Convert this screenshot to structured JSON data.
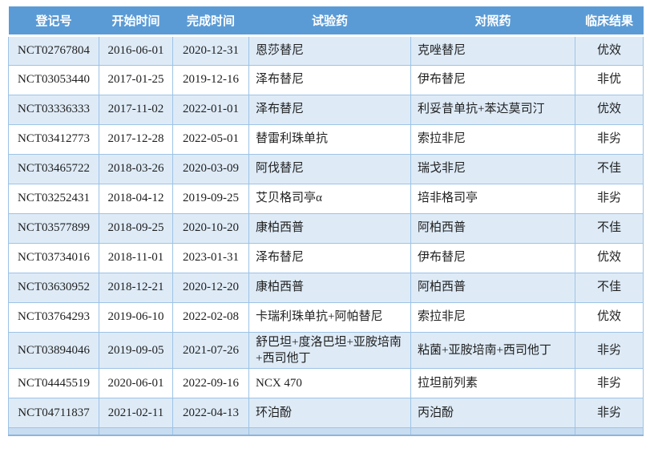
{
  "table": {
    "columns": [
      {
        "key": "registration_id",
        "label": "登记号"
      },
      {
        "key": "start_date",
        "label": "开始时间"
      },
      {
        "key": "end_date",
        "label": "完成时间"
      },
      {
        "key": "test_drug",
        "label": "试验药"
      },
      {
        "key": "control_drug",
        "label": "对照药"
      },
      {
        "key": "clinical_result",
        "label": "临床结果"
      }
    ],
    "rows": [
      {
        "registration_id": "NCT02767804",
        "start_date": "2016-06-01",
        "end_date": "2020-12-31",
        "test_drug": "恩莎替尼",
        "control_drug": "克唑替尼",
        "clinical_result": "优效"
      },
      {
        "registration_id": "NCT03053440",
        "start_date": "2017-01-25",
        "end_date": "2019-12-16",
        "test_drug": "泽布替尼",
        "control_drug": "伊布替尼",
        "clinical_result": "非优"
      },
      {
        "registration_id": "NCT03336333",
        "start_date": "2017-11-02",
        "end_date": "2022-01-01",
        "test_drug": "泽布替尼",
        "control_drug": "利妥昔单抗+苯达莫司汀",
        "clinical_result": "优效"
      },
      {
        "registration_id": "NCT03412773",
        "start_date": "2017-12-28",
        "end_date": "2022-05-01",
        "test_drug": "替雷利珠单抗",
        "control_drug": "索拉非尼",
        "clinical_result": "非劣"
      },
      {
        "registration_id": "NCT03465722",
        "start_date": "2018-03-26",
        "end_date": "2020-03-09",
        "test_drug": "阿伐替尼",
        "control_drug": "瑞戈非尼",
        "clinical_result": "不佳"
      },
      {
        "registration_id": "NCT03252431",
        "start_date": "2018-04-12",
        "end_date": "2019-09-25",
        "test_drug": "艾贝格司亭α",
        "control_drug": "培非格司亭",
        "clinical_result": "非劣"
      },
      {
        "registration_id": "NCT03577899",
        "start_date": "2018-09-25",
        "end_date": "2020-10-20",
        "test_drug": "康柏西普",
        "control_drug": "阿柏西普",
        "clinical_result": "不佳"
      },
      {
        "registration_id": "NCT03734016",
        "start_date": "2018-11-01",
        "end_date": "2023-01-31",
        "test_drug": "泽布替尼",
        "control_drug": "伊布替尼",
        "clinical_result": "优效"
      },
      {
        "registration_id": "NCT03630952",
        "start_date": "2018-12-21",
        "end_date": "2020-12-20",
        "test_drug": "康柏西普",
        "control_drug": "阿柏西普",
        "clinical_result": "不佳"
      },
      {
        "registration_id": "NCT03764293",
        "start_date": "2019-06-10",
        "end_date": "2022-02-08",
        "test_drug": "卡瑞利珠单抗+阿帕替尼",
        "control_drug": "索拉非尼",
        "clinical_result": "优效"
      },
      {
        "registration_id": "NCT03894046",
        "start_date": "2019-09-05",
        "end_date": "2021-07-26",
        "test_drug": "舒巴坦+度洛巴坦+亚胺培南+西司他丁",
        "control_drug": "粘菌+亚胺培南+西司他丁",
        "clinical_result": "非劣"
      },
      {
        "registration_id": "NCT04445519",
        "start_date": "2020-06-01",
        "end_date": "2022-09-16",
        "test_drug": "NCX 470",
        "control_drug": "拉坦前列素",
        "clinical_result": "非劣"
      },
      {
        "registration_id": "NCT04711837",
        "start_date": "2021-02-11",
        "end_date": "2022-04-13",
        "test_drug": "环泊酚",
        "control_drug": "丙泊酚",
        "clinical_result": "非劣"
      }
    ]
  },
  "colors": {
    "header_bg": "#5B9BD5",
    "header_text": "#FFFFFF",
    "row_alt_bg": "#DEEBF7",
    "row_bg": "#FFFFFF",
    "border": "#9DC3E6",
    "footer_bar_bg": "#C9DDF0"
  }
}
